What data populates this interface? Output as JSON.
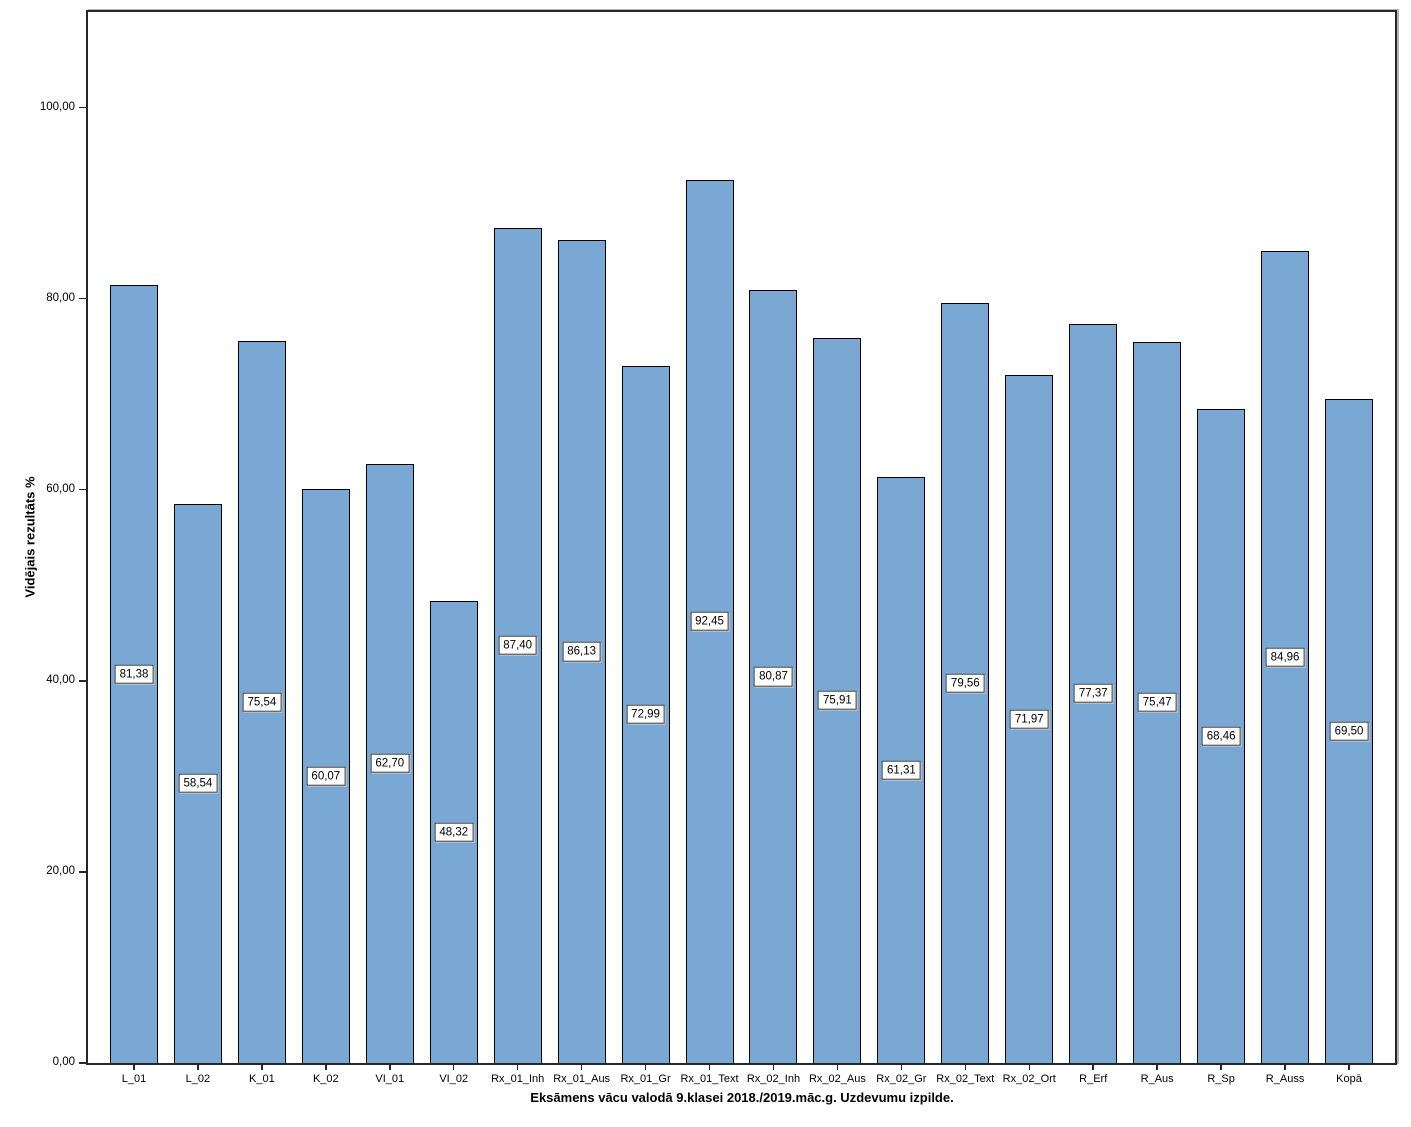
{
  "chart_data": {
    "type": "bar",
    "title": "",
    "xlabel": "Eksāmens vācu valodā 9.klasei 2018./2019.māc.g. Uzdevumu izpilde.",
    "ylabel": "Vidējais rezultāts %",
    "categories": [
      "L_01",
      "L_02",
      "K_01",
      "K_02",
      "VI_01",
      "VI_02",
      "Rx_01_Inh",
      "Rx_01_Aus",
      "Rx_01_Gr",
      "Rx_01_Text",
      "Rx_02_Inh",
      "Rx_02_Aus",
      "Rx_02_Gr",
      "Rx_02_Text",
      "Rx_02_Ort",
      "R_Erf",
      "R_Aus",
      "R_Sp",
      "R_Auss",
      "Kopā"
    ],
    "values": [
      81.38,
      58.54,
      75.54,
      60.07,
      62.7,
      48.32,
      87.4,
      86.13,
      72.99,
      92.45,
      80.87,
      75.91,
      61.31,
      79.56,
      71.97,
      77.37,
      75.47,
      68.46,
      84.96,
      69.5
    ],
    "value_labels": [
      "81,38",
      "58,54",
      "75,54",
      "60,07",
      "62,70",
      "48,32",
      "87,40",
      "86,13",
      "72,99",
      "92,45",
      "80,87",
      "75,91",
      "61,31",
      "79,56",
      "71,97",
      "77,37",
      "75,47",
      "68,46",
      "84,96",
      "69,50"
    ],
    "y_ticks": [
      "0,00",
      "20,00",
      "40,00",
      "60,00",
      "80,00",
      "100,00"
    ],
    "y_tick_values": [
      0,
      20,
      40,
      60,
      80,
      100
    ],
    "ylim": [
      0,
      110
    ],
    "grid": false,
    "legend": null,
    "value_label_position": "middle-of-bar",
    "bar_color": "#7AA8D5",
    "bar_border_color": "#000000"
  }
}
